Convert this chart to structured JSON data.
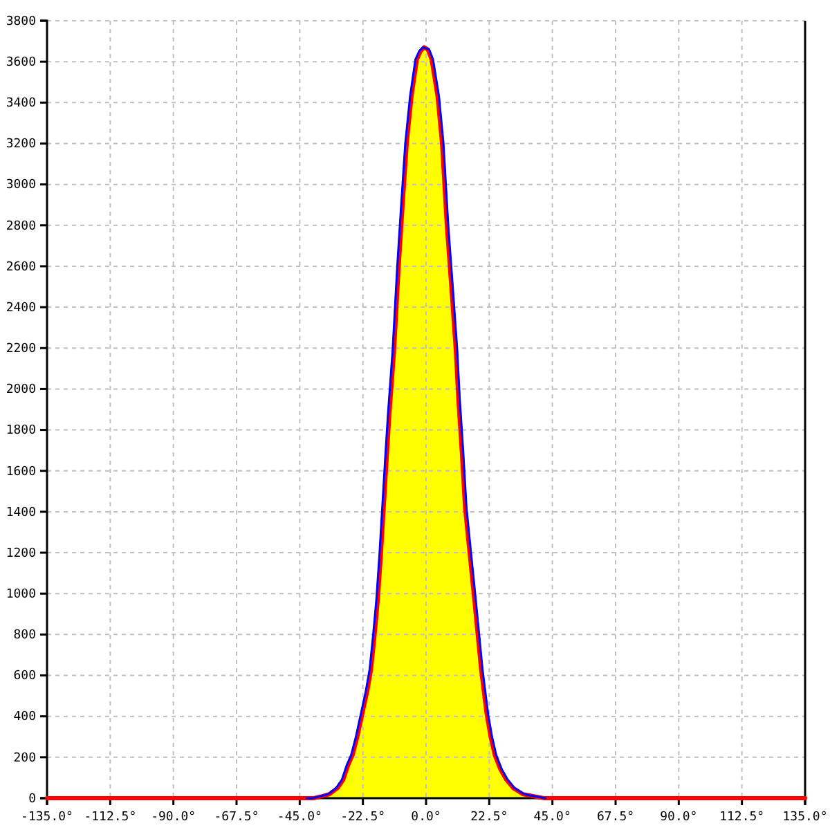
{
  "chart_data": {
    "type": "area",
    "xlim": [
      -135,
      135
    ],
    "xticks": [
      {
        "value": -135,
        "label": "-135.0°"
      },
      {
        "value": -112.5,
        "label": "-112.5°"
      },
      {
        "value": -90,
        "label": "-90.0°"
      },
      {
        "value": -67.5,
        "label": "-67.5°"
      },
      {
        "value": -45,
        "label": "-45.0°"
      },
      {
        "value": -22.5,
        "label": "-22.5°"
      },
      {
        "value": 0,
        "label": "0.0°"
      },
      {
        "value": 22.5,
        "label": "22.5°"
      },
      {
        "value": 45,
        "label": "45.0°"
      },
      {
        "value": 67.5,
        "label": "67.5°"
      },
      {
        "value": 90,
        "label": "90.0°"
      },
      {
        "value": 112.5,
        "label": "112.5°"
      },
      {
        "value": 135,
        "label": "135.0°"
      }
    ],
    "ylim": [
      0,
      3800
    ],
    "yticks": [
      0,
      200,
      400,
      600,
      800,
      1000,
      1200,
      1400,
      1600,
      1800,
      2000,
      2200,
      2400,
      2600,
      2800,
      3000,
      3200,
      3400,
      3600,
      3800
    ],
    "grid": true,
    "x": [
      -42,
      -40,
      -37,
      -34.4,
      -31.5,
      -29.5,
      -27.8,
      -26.2,
      -24.5,
      -22.6,
      -21,
      -19.6,
      -18.4,
      -17.2,
      -16.1,
      -15.1,
      -14.1,
      -13.1,
      -11.4,
      -9.8,
      -8.5,
      -6.9,
      -5.2,
      -3.3,
      -2,
      -0.7,
      0.6,
      2,
      4.1,
      5.7,
      7.4,
      9,
      10.6,
      11.5,
      12.7,
      13.9,
      15.5,
      17.2,
      18.4,
      19.6,
      20.6,
      21.6,
      23,
      24.5,
      26.5,
      28.6,
      31,
      34.4,
      38,
      42
    ],
    "series": [
      {
        "color": "#ffff00",
        "values": [
          0,
          0,
          10,
          20,
          50,
          90,
          160,
          210,
          300,
          420,
          520,
          630,
          790,
          970,
          1190,
          1420,
          1650,
          1870,
          2190,
          2590,
          2870,
          3200,
          3430,
          3610,
          3650,
          3670,
          3660,
          3610,
          3430,
          3200,
          2800,
          2500,
          2190,
          1950,
          1700,
          1420,
          1200,
          970,
          800,
          630,
          520,
          410,
          300,
          210,
          140,
          90,
          50,
          20,
          10,
          0
        ]
      },
      {
        "type": "line",
        "color": "#ff0000",
        "x": [
          -135,
          -42,
          -40,
          -37,
          -34.4,
          -31.5,
          -29.5,
          -27.8,
          -26.2,
          -24.5,
          -22.6,
          -21,
          -19.6,
          -18.4,
          -17.2,
          -16.1,
          -15.1,
          -14.1,
          -13.1,
          -11.4,
          -9.8,
          -8.5,
          -6.9,
          -5.2,
          -3.3,
          -2,
          -0.7,
          0.6,
          2,
          4.1,
          5.7,
          7.4,
          9,
          10.6,
          11.5,
          12.7,
          13.9,
          15.5,
          17.2,
          18.4,
          19.6,
          20.6,
          21.6,
          23,
          24.5,
          26.5,
          28.6,
          31,
          34.4,
          38,
          42,
          135
        ],
        "values": [
          0,
          0,
          0,
          10,
          20,
          50,
          90,
          160,
          210,
          300,
          420,
          520,
          630,
          790,
          970,
          1190,
          1420,
          1650,
          1870,
          2190,
          2590,
          2870,
          3200,
          3430,
          3610,
          3650,
          3670,
          3660,
          3610,
          3430,
          3200,
          2800,
          2500,
          2190,
          1950,
          1700,
          1420,
          1200,
          970,
          800,
          630,
          520,
          410,
          300,
          210,
          140,
          90,
          50,
          20,
          10,
          0,
          0
        ]
      },
      {
        "type": "line",
        "color": "#0000ff",
        "x": [
          -42.5,
          -40.5,
          -37.5,
          -34.9,
          -32,
          -30,
          -28.3,
          -26.7,
          -25,
          -23.1,
          -21.5,
          -20.1,
          -18.9,
          -17.7,
          -16.6,
          -15.6,
          -14.6,
          -13.6,
          -11.9,
          -10.3,
          -9,
          -7.4,
          -5.7,
          -3.8,
          -2.5,
          -1.2,
          1.1,
          2.5,
          4.6,
          6.2,
          7.9,
          9.5,
          11.1,
          12,
          13.2,
          14.4,
          16,
          17.7,
          18.9,
          20.1,
          21.1,
          22.1,
          23.5,
          25,
          27,
          29.1,
          31.5,
          34.9,
          38.5,
          42.5
        ],
        "values": [
          0,
          0,
          10,
          20,
          50,
          90,
          160,
          210,
          300,
          420,
          520,
          630,
          790,
          970,
          1190,
          1420,
          1650,
          1870,
          2190,
          2590,
          2870,
          3200,
          3430,
          3610,
          3650,
          3670,
          3660,
          3610,
          3430,
          3200,
          2800,
          2500,
          2190,
          1950,
          1700,
          1420,
          1200,
          970,
          800,
          630,
          520,
          410,
          300,
          210,
          140,
          90,
          50,
          20,
          10,
          0
        ]
      }
    ]
  }
}
